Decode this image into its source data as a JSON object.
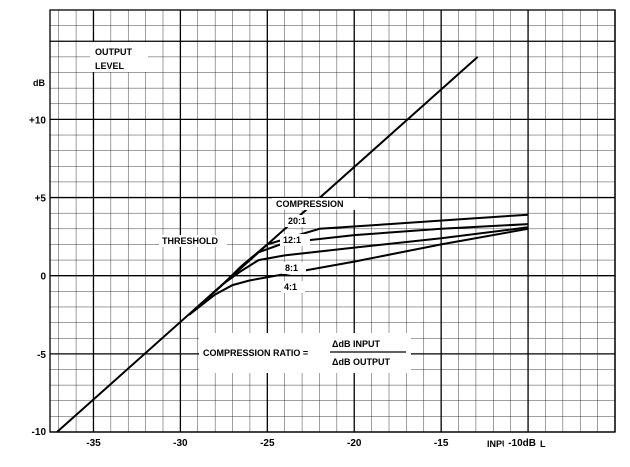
{
  "chart_data": {
    "type": "line",
    "title": "",
    "xlabel": "INPUT LEVEL",
    "ylabel": "dB",
    "xlim": [
      -37.5,
      -5
    ],
    "ylim": [
      -10,
      17
    ],
    "grid": true,
    "x_tick_labels": [
      {
        "value": -35,
        "text": "-35"
      },
      {
        "value": -30,
        "text": "-30"
      },
      {
        "value": -25,
        "text": "-25"
      },
      {
        "value": -20,
        "text": "-20"
      },
      {
        "value": -15,
        "text": "-15"
      },
      {
        "value": -10,
        "text": "-10dB"
      }
    ],
    "y_tick_labels": [
      {
        "value": 10,
        "text": "+10"
      },
      {
        "value": 5,
        "text": "+5"
      },
      {
        "value": 0,
        "text": "0"
      },
      {
        "value": -5,
        "text": "-5"
      },
      {
        "value": -10,
        "text": "-10"
      }
    ],
    "series": [
      {
        "name": "",
        "x": [
          -37.1,
          -12.9
        ],
        "y": [
          -10.0,
          14.0
        ]
      },
      {
        "name": "20:1",
        "x": [
          -29.5,
          -27.5,
          -26.5,
          -25.0,
          -22.0,
          -18.0,
          -14.0,
          -10.0
        ],
        "y": [
          -2.5,
          -0.5,
          0.6,
          2.0,
          3.0,
          3.3,
          3.6,
          3.9
        ]
      },
      {
        "name": "12:1",
        "x": [
          -29.5,
          -27.5,
          -26.5,
          -25.5,
          -24.0,
          -20.0,
          -15.0,
          -10.0
        ],
        "y": [
          -2.5,
          -0.5,
          0.5,
          1.5,
          2.1,
          2.6,
          3.0,
          3.3
        ]
      },
      {
        "name": "8:1",
        "x": [
          -29.5,
          -27.5,
          -26.5,
          -25.5,
          -24.0,
          -20.0,
          -15.0,
          -10.0
        ],
        "y": [
          -2.5,
          -0.5,
          0.3,
          1.0,
          1.3,
          1.8,
          2.4,
          3.1
        ]
      },
      {
        "name": "4:1",
        "x": [
          -29.5,
          -28.0,
          -27.0,
          -26.0,
          -24.0,
          -20.0,
          -15.0,
          -10.0
        ],
        "y": [
          -2.5,
          -1.2,
          -0.6,
          -0.3,
          0.1,
          0.9,
          2.0,
          3.0
        ]
      }
    ],
    "annotations": {
      "y_unit": "dB",
      "output_line1": "OUTPUT",
      "output_line2": "LEVEL",
      "compression": "COMPRESSION",
      "threshold": "THRESHOLD",
      "ratio_label": "COMPRESSION RATIO =",
      "ratio_numerator": "ΔdB INPUT",
      "ratio_denominator": "ΔdB OUTPUT",
      "input_level": "INPUT LEVEL"
    }
  }
}
